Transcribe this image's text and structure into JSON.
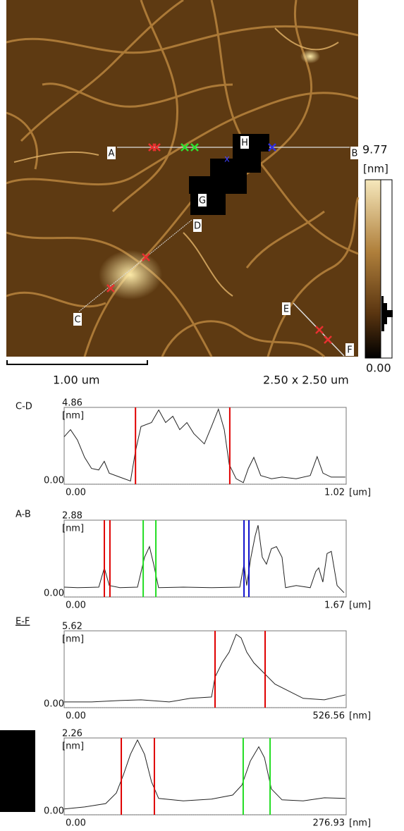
{
  "image": {
    "markers": [
      "A",
      "B",
      "C",
      "D",
      "E",
      "F",
      "G",
      "H"
    ],
    "colorbar": {
      "max": 9.77,
      "min": {
        "value": 0,
        "label": "0.00"
      },
      "unit": "[nm]"
    },
    "scale_bar": "1.00 um",
    "size": "2.50 x 2.50 um"
  },
  "chart_data": [
    {
      "type": "line",
      "title": "C-D",
      "y_label": "[nm]",
      "x_label": "[um]",
      "xlim": [
        0,
        1.02
      ],
      "ylim": [
        0,
        4.86
      ],
      "xticks": [
        {
          "value": 0,
          "label": "0.00"
        },
        1.02
      ],
      "yticks": [
        {
          "value": 0,
          "label": "0.00"
        },
        4.86
      ],
      "series": [
        {
          "color": "#222222",
          "x": [
            0,
            0.023,
            0.048,
            0.074,
            0.099,
            0.125,
            0.145,
            0.163,
            0.201,
            0.24,
            0.258,
            0.278,
            0.316,
            0.342,
            0.367,
            0.393,
            0.418,
            0.444,
            0.469,
            0.507,
            0.533,
            0.558,
            0.579,
            0.597,
            0.622,
            0.648,
            0.666,
            0.686,
            0.711,
            0.75,
            0.788,
            0.839,
            0.89,
            0.915,
            0.936,
            0.966,
            1.017
          ],
          "values": [
            3.0,
            3.45,
            2.8,
            1.7,
            1.0,
            0.9,
            1.45,
            0.7,
            0.45,
            0.2,
            2.1,
            3.65,
            3.9,
            4.7,
            3.9,
            4.3,
            3.45,
            3.9,
            3.2,
            2.55,
            3.65,
            4.75,
            3.45,
            1.25,
            0.35,
            0.1,
            1.0,
            1.7,
            0.55,
            0.35,
            0.45,
            0.35,
            0.55,
            1.75,
            0.7,
            0.45,
            0.45
          ]
        }
      ],
      "cursors": [
        {
          "x": 0.258,
          "color": "#e00000"
        },
        {
          "x": 0.599,
          "color": "#e00000"
        }
      ]
    },
    {
      "type": "line",
      "title": "A-B",
      "y_label": "[nm]",
      "x_label": "[um]",
      "xlim": [
        0,
        1.67
      ],
      "ylim": [
        0,
        2.88
      ],
      "xticks": [
        {
          "value": 0,
          "label": "0.00"
        },
        1.67
      ],
      "yticks": [
        {
          "value": 0,
          "label": "0.00"
        },
        2.88
      ],
      "series": [
        {
          "color": "#222222",
          "x": [
            0,
            0.079,
            0.205,
            0.238,
            0.267,
            0.33,
            0.434,
            0.476,
            0.505,
            0.53,
            0.559,
            0.706,
            0.873,
            1.04,
            1.065,
            1.081,
            1.106,
            1.131,
            1.148,
            1.173,
            1.198,
            1.227,
            1.257,
            1.29,
            1.311,
            1.374,
            1.457,
            1.49,
            1.507,
            1.532,
            1.557,
            1.582,
            1.616,
            1.657
          ],
          "values": [
            0.37,
            0.35,
            0.37,
            1.09,
            0.43,
            0.35,
            0.37,
            1.49,
            1.89,
            1.23,
            0.35,
            0.37,
            0.35,
            0.37,
            1.23,
            0.43,
            1.49,
            2.29,
            2.69,
            1.49,
            1.23,
            1.81,
            1.89,
            1.49,
            0.35,
            0.43,
            0.35,
            0.96,
            1.09,
            0.56,
            1.63,
            1.71,
            0.43,
            0.16
          ]
        }
      ],
      "cursors": [
        {
          "x": 0.238,
          "color": "#e00000"
        },
        {
          "x": 0.271,
          "color": "#e00000"
        },
        {
          "x": 0.468,
          "color": "#22dd22"
        },
        {
          "x": 0.543,
          "color": "#22dd22"
        },
        {
          "x": 1.065,
          "color": "#1010cc"
        },
        {
          "x": 1.094,
          "color": "#1010cc"
        }
      ]
    },
    {
      "type": "line",
      "title": "E-F",
      "y_label": "[nm]",
      "x_label": "[nm]",
      "xlim": [
        0,
        526.56
      ],
      "ylim": [
        0,
        5.62
      ],
      "xticks": [
        {
          "value": 0,
          "label": "0.00"
        },
        526.56
      ],
      "yticks": [
        {
          "value": 0,
          "label": "0.00"
        },
        5.62
      ],
      "series": [
        {
          "color": "#222222",
          "x": [
            0,
            51.3,
            104,
            143.5,
            196.1,
            235.6,
            275.1,
            281.7,
            294.9,
            308,
            321.2,
            330.4,
            341,
            354.1,
            373.9,
            393.6,
            419.9,
            446.3,
            485.8,
            525.2
          ],
          "values": [
            0.42,
            0.42,
            0.52,
            0.57,
            0.42,
            0.68,
            0.78,
            2.24,
            3.28,
            4.06,
            5.36,
            5.1,
            4.06,
            3.28,
            2.5,
            1.72,
            1.2,
            0.68,
            0.57,
            0.94
          ]
        }
      ],
      "cursors": [
        {
          "x": 281.7,
          "color": "#e00000"
        },
        {
          "x": 375.2,
          "color": "#e00000"
        }
      ]
    },
    {
      "type": "line",
      "y_label": "[nm]",
      "x_label": "[nm]",
      "xlim": [
        0,
        276.93
      ],
      "ylim": [
        0,
        2.26
      ],
      "xticks": [
        {
          "value": 0,
          "label": "0.00"
        },
        276.93
      ],
      "yticks": [
        {
          "value": 0,
          "label": "0.00"
        },
        2.26
      ],
      "series": [
        {
          "color": "#222222",
          "x": [
            0,
            20.1,
            40.8,
            51.2,
            58.2,
            65.1,
            72,
            78.9,
            85.8,
            92.8,
            117,
            144.7,
            165.5,
            174.5,
            182.8,
            191.1,
            196.7,
            203.5,
            213.9,
            234.7,
            255.5,
            276.2
          ],
          "values": [
            0.17,
            0.23,
            0.33,
            0.64,
            1.18,
            1.78,
            2.2,
            1.78,
            0.97,
            0.48,
            0.41,
            0.46,
            0.58,
            0.87,
            1.58,
            2.0,
            1.68,
            0.76,
            0.44,
            0.41,
            0.5,
            0.48
          ]
        }
      ],
      "cursors": [
        {
          "x": 56.1,
          "color": "#e00000"
        },
        {
          "x": 88.6,
          "color": "#e00000"
        },
        {
          "x": 175.8,
          "color": "#22dd22"
        },
        {
          "x": 202.2,
          "color": "#22dd22"
        }
      ]
    }
  ]
}
